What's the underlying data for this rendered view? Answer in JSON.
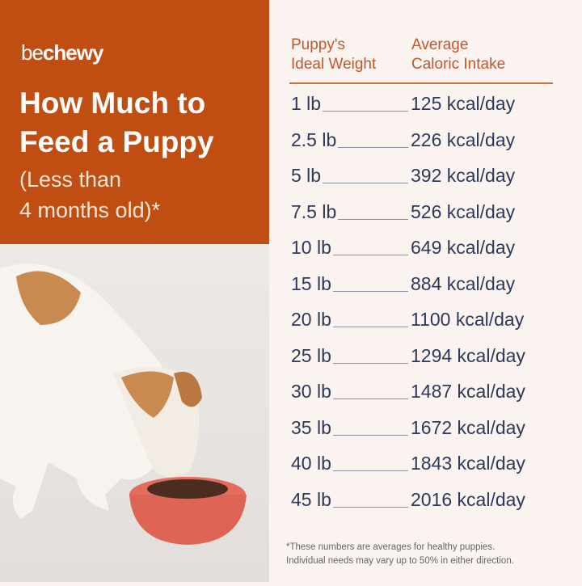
{
  "brand": {
    "logo_light": "be",
    "logo_bold": "chewy"
  },
  "title": "How Much to Feed a Puppy",
  "subtitle_line1": "(Less than",
  "subtitle_line2": "4 months old)*",
  "table": {
    "header_weight_1": "Puppy's",
    "header_weight_2": "Ideal Weight",
    "header_cal_1": "Average",
    "header_cal_2": "Caloric Intake",
    "rows": [
      {
        "weight": "1 lb",
        "calories": "125 kcal/day"
      },
      {
        "weight": "2.5 lb",
        "calories": "226 kcal/day"
      },
      {
        "weight": "5 lb",
        "calories": "392 kcal/day"
      },
      {
        "weight": "7.5 lb",
        "calories": "526 kcal/day"
      },
      {
        "weight": "10 lb",
        "calories": "649 kcal/day"
      },
      {
        "weight": "15 lb",
        "calories": "884 kcal/day"
      },
      {
        "weight": "20 lb",
        "calories": "1100 kcal/day"
      },
      {
        "weight": "25 lb",
        "calories": "1294 kcal/day"
      },
      {
        "weight": "30 lb",
        "calories": "1487 kcal/day"
      },
      {
        "weight": "35 lb",
        "calories": "1672 kcal/day"
      },
      {
        "weight": "40 lb",
        "calories": "1843 kcal/day"
      },
      {
        "weight": "45 lb",
        "calories": "2016 kcal/day"
      }
    ]
  },
  "footnote_1": "*These numbers are averages for healthy puppies.",
  "footnote_2": "Individual needs may vary up to 50% in either direction.",
  "colors": {
    "brand": "#c04e12",
    "text": "#2d3a5a",
    "accent": "#c2582a"
  }
}
